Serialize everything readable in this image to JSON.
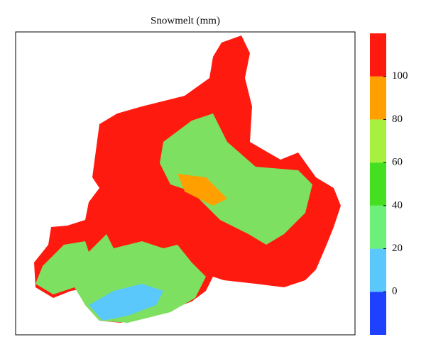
{
  "title": "Snowmelt (mm)",
  "colorbar": {
    "lim": [
      -20,
      120
    ],
    "ticks": [
      0,
      20,
      40,
      60,
      80,
      100
    ],
    "colors": [
      "#2040ff",
      "#5ac8fa",
      "#6cf07a",
      "#44e020",
      "#a8f040",
      "#ffa000",
      "#ff1a10"
    ]
  }
}
